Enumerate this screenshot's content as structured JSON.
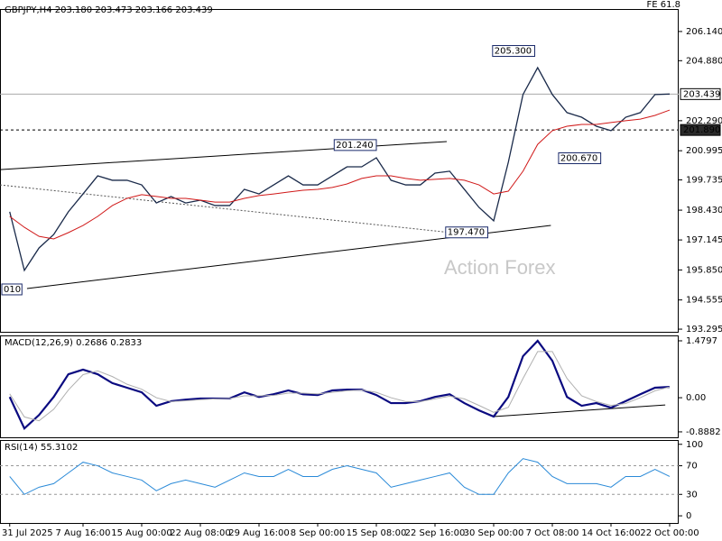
{
  "chart_data": [
    {
      "type": "line",
      "title": "GBPJPY,H4  203.180 203.473 203.166 203.439",
      "corner_label": "FE 61.8",
      "watermark": "Action Forex",
      "categories": [
        "31 Jul 2025",
        null,
        null,
        null,
        null,
        "7 Aug 16:00",
        null,
        null,
        null,
        "15 Aug 00:00",
        null,
        null,
        null,
        "22 Aug 08:00",
        null,
        null,
        null,
        "29 Aug 16:00",
        null,
        null,
        null,
        "8 Sep 00:00",
        null,
        null,
        null,
        "15 Sep 08:00",
        null,
        null,
        null,
        "22 Sep 16:00",
        null,
        null,
        null,
        "30 Sep 00:00",
        null,
        null,
        null,
        "7 Oct 08:00",
        null,
        null,
        null,
        "14 Oct 16:00",
        null,
        null,
        null,
        "22 Oct 00:00"
      ],
      "series": [
        {
          "color": "#1a2a4a",
          "width": 1.3,
          "values": [
            198.36,
            195.83,
            196.8,
            197.38,
            198.36,
            199.13,
            199.91,
            199.72,
            199.72,
            199.52,
            198.74,
            199.02,
            198.74,
            198.86,
            198.63,
            198.63,
            199.33,
            199.13,
            199.52,
            199.91,
            199.52,
            199.52,
            199.91,
            200.3,
            200.3,
            200.69,
            199.72,
            199.52,
            199.52,
            200.03,
            200.11,
            199.33,
            198.55,
            197.97,
            200.5,
            203.42,
            204.58,
            203.42,
            202.64,
            202.44,
            202.05,
            201.86,
            202.44,
            202.64,
            203.42,
            203.44
          ]
        },
        {
          "color": "#d01818",
          "width": 1,
          "values": [
            198.16,
            197.69,
            197.3,
            197.19,
            197.46,
            197.77,
            198.16,
            198.63,
            198.94,
            199.1,
            199.02,
            198.94,
            198.94,
            198.86,
            198.78,
            198.78,
            198.94,
            199.06,
            199.13,
            199.21,
            199.29,
            199.33,
            199.41,
            199.56,
            199.8,
            199.91,
            199.91,
            199.8,
            199.72,
            199.76,
            199.8,
            199.72,
            199.52,
            199.13,
            199.25,
            200.11,
            201.27,
            201.86,
            202.05,
            202.13,
            202.13,
            202.21,
            202.29,
            202.36,
            202.52,
            202.75
          ]
        }
      ],
      "ylim": [
        193.18,
        207.11
      ],
      "yticks": [
        {
          "value": 206.14,
          "label": "206.140"
        },
        {
          "value": 204.88,
          "label": "204.880"
        },
        {
          "value": 202.29,
          "label": "202.290"
        },
        {
          "value": 200.995,
          "label": "200.995"
        },
        {
          "value": 199.735,
          "label": "199.735"
        },
        {
          "value": 198.43,
          "label": "198.430"
        },
        {
          "value": 197.145,
          "label": "197.145"
        },
        {
          "value": 195.85,
          "label": "195.850"
        },
        {
          "value": 194.555,
          "label": "194.555"
        },
        {
          "value": 193.295,
          "label": "193.295"
        }
      ],
      "hlines": [
        {
          "value": 203.439,
          "label": "203.439",
          "style": "solid"
        },
        {
          "value": 201.89,
          "label": "201.890",
          "style": "dashed"
        }
      ],
      "lines": [
        {
          "from": [
            -0.66,
            200.18
          ],
          "to": [
            29.8,
            201.39
          ],
          "style": "solid"
        },
        {
          "from": [
            1.18,
            195.05
          ],
          "to": [
            36.9,
            197.77
          ],
          "style": "solid"
        },
        {
          "from": [
            -0.66,
            199.52
          ],
          "to": [
            30.1,
            197.46
          ],
          "style": "dotted"
        }
      ],
      "annotations": [
        {
          "index": 35.8,
          "value": 205.3,
          "label": "205.300"
        },
        {
          "index": 25,
          "value": 201.24,
          "label": "201.240"
        },
        {
          "index": 40.3,
          "value": 200.67,
          "label": "200.670"
        },
        {
          "index": 32.6,
          "value": 197.47,
          "label": "197.470"
        },
        {
          "index": 0,
          "value": 195.01,
          "label": "010"
        }
      ]
    },
    {
      "type": "line",
      "title": "MACD(12,26,9) 0.2686 0.2833",
      "series": [
        {
          "color": "#0a0a80",
          "width": 2.2,
          "values": [
            0.02,
            -0.8,
            -0.45,
            0.02,
            0.61,
            0.73,
            0.61,
            0.38,
            0.26,
            0.14,
            -0.21,
            -0.09,
            -0.05,
            -0.02,
            -0.02,
            -0.02,
            0.14,
            0.02,
            0.09,
            0.19,
            0.09,
            0.07,
            0.19,
            0.21,
            0.21,
            0.07,
            -0.14,
            -0.14,
            -0.09,
            0.02,
            0.09,
            -0.14,
            -0.33,
            -0.49,
            0.02,
            1.08,
            1.48,
            0.96,
            0.02,
            -0.21,
            -0.14,
            -0.26,
            -0.09,
            0.09,
            0.26,
            0.28
          ]
        },
        {
          "color": "#b0b0b0",
          "width": 1,
          "values": [
            0.1,
            -0.5,
            -0.6,
            -0.3,
            0.2,
            0.6,
            0.7,
            0.55,
            0.35,
            0.22,
            0.0,
            -0.1,
            -0.08,
            -0.05,
            -0.03,
            -0.02,
            0.05,
            0.05,
            0.06,
            0.12,
            0.12,
            0.1,
            0.14,
            0.18,
            0.2,
            0.14,
            0.0,
            -0.1,
            -0.1,
            -0.03,
            0.04,
            -0.03,
            -0.2,
            -0.38,
            -0.25,
            0.5,
            1.2,
            1.2,
            0.5,
            0.05,
            -0.1,
            -0.2,
            -0.15,
            0.0,
            0.18,
            0.28
          ]
        }
      ],
      "ylim": [
        -1.03,
        1.62
      ],
      "yticks": [
        1.4797,
        {
          "value": 0,
          "label": "0.00"
        },
        -0.8882
      ],
      "lines": [
        {
          "from": [
            33,
            -0.49
          ],
          "to": [
            44.7,
            -0.19
          ],
          "style": "solid"
        }
      ]
    },
    {
      "type": "line",
      "title": "RSI(14) 55.3102",
      "series": [
        {
          "color": "#2a8ad8",
          "width": 1,
          "values": [
            55,
            30,
            40,
            45,
            60,
            75,
            70,
            60,
            55,
            50,
            35,
            45,
            50,
            45,
            40,
            50,
            60,
            55,
            55,
            65,
            55,
            55,
            65,
            70,
            65,
            60,
            40,
            45,
            50,
            55,
            60,
            40,
            30,
            30,
            60,
            80,
            75,
            55,
            45,
            45,
            45,
            40,
            55,
            55,
            65,
            55
          ]
        }
      ],
      "ylim": [
        -10,
        106
      ],
      "yticks": [
        100,
        70,
        30,
        0
      ],
      "levels": [
        70,
        30
      ]
    }
  ]
}
